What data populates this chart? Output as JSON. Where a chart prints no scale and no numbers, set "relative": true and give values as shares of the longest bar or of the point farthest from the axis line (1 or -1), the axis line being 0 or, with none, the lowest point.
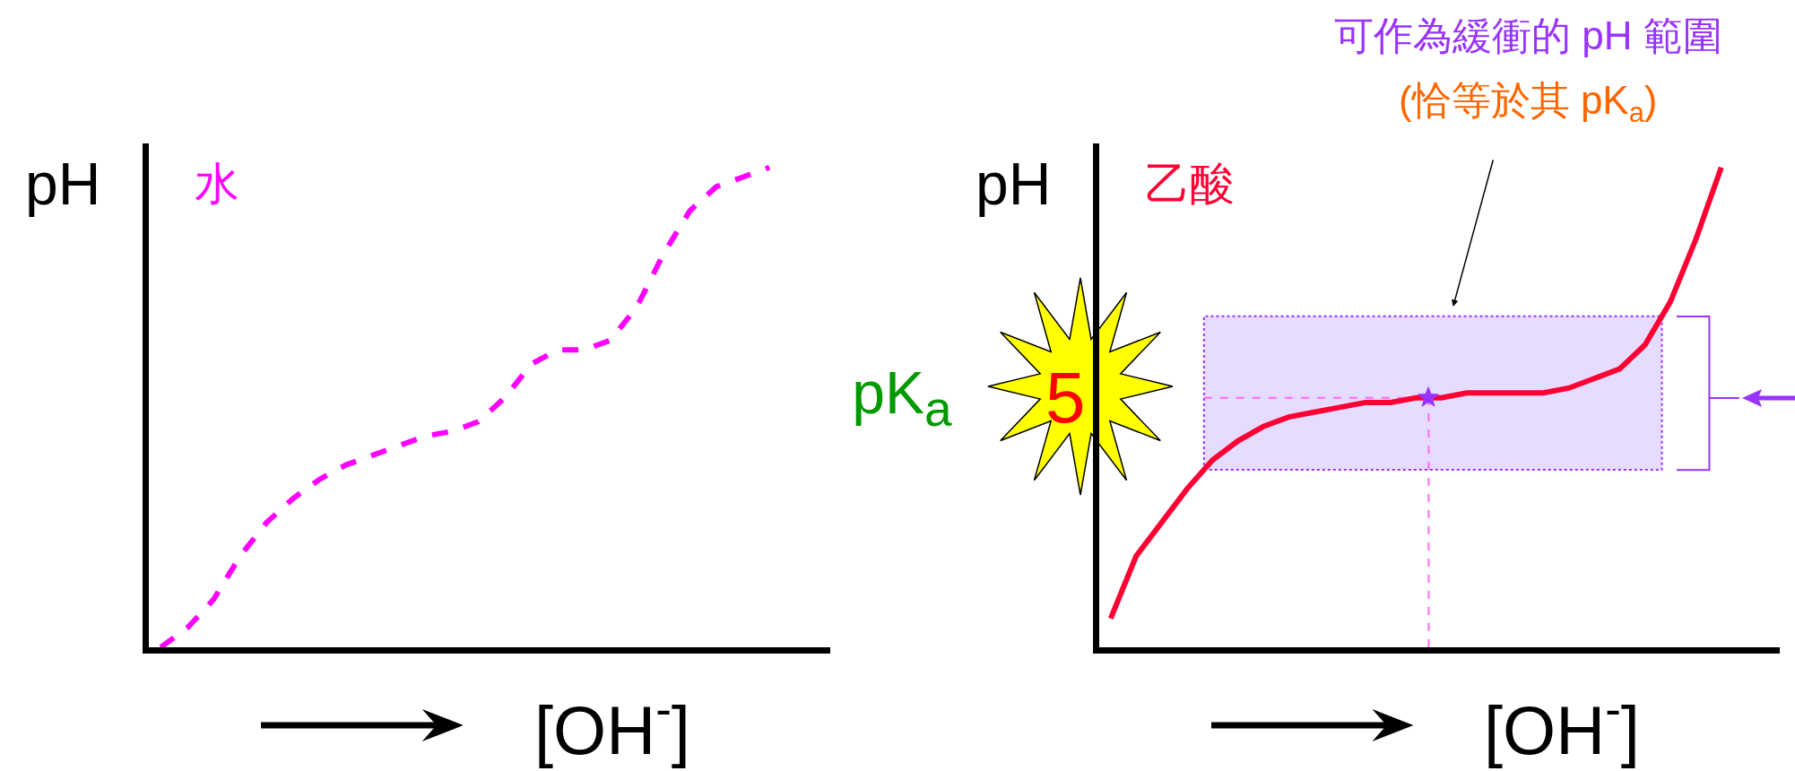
{
  "chart_data": [
    {
      "type": "line",
      "categories": [
        null,
        null,
        null,
        null,
        null,
        null,
        null,
        null,
        null,
        null,
        null,
        null,
        null,
        null,
        null,
        null,
        null,
        null,
        null,
        null,
        null,
        null,
        null,
        null
      ],
      "ylabel": "pH",
      "xlabel": "[OH$^{-}$]",
      "relative": true,
      "series": [
        {
          "name": "水",
          "color": "#ff00ff",
          "line_style": "dashed",
          "values": [
            0,
            0.04,
            0.1,
            0.19,
            0.26,
            0.31,
            0.35,
            0.38,
            0.4,
            0.42,
            0.44,
            0.45,
            0.47,
            0.52,
            0.59,
            0.62,
            0.62,
            0.64,
            0.71,
            0.82,
            0.91,
            0.96,
            0.98,
            1
          ]
        }
      ]
    },
    {
      "type": "line",
      "categories": [
        null,
        null,
        null,
        null,
        null,
        null,
        null,
        null,
        null,
        null,
        null,
        null,
        null,
        null,
        null,
        null,
        null,
        null,
        null,
        null,
        null,
        null,
        null,
        null,
        null
      ],
      "ylabel": "pH",
      "xlabel": "[OH$^{-}$]",
      "relative": true,
      "series": [
        {
          "name": "乙酸",
          "color": "#ff0033",
          "values": [
            0.06,
            0.19,
            0.26,
            0.33,
            0.39,
            0.43,
            0.46,
            0.48,
            0.49,
            0.5,
            0.51,
            0.51,
            0.52,
            0.52,
            0.53,
            0.53,
            0.53,
            0.53,
            0.54,
            0.56,
            0.58,
            0.63,
            0.72,
            0.85,
            1
          ]
        }
      ],
      "bands": [
        {
          "axis": "y",
          "from": 0.37,
          "to": 0.69,
          "color": "#e6dcff"
        }
      ],
      "ref_lines": [
        {
          "axis": "y",
          "value": 0.52,
          "color": "#ff66ff",
          "line_style": "dashed"
        }
      ],
      "annotations": [
        "可作為緩衝的 pH 範圍",
        "(恰等於其 pK$_{a}$)",
        "5",
        "pK$_{a}$"
      ]
    }
  ]
}
